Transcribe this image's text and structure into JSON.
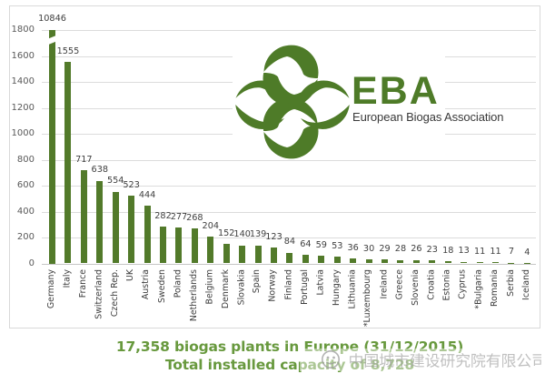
{
  "chart_data": {
    "type": "bar",
    "categories": [
      "Germany",
      "Italy",
      "France",
      "Switzerland",
      "Czech Rep.",
      "UK",
      "Austria",
      "Sweden",
      "Poland",
      "Netherlands",
      "Belgium",
      "Denmark",
      "Slovakia",
      "Spain",
      "Norway",
      "Finland",
      "Portugal",
      "Latvia",
      "Hungary",
      "Lithuania",
      "*Luxembourg",
      "Ireland",
      "Greece",
      "Slovenia",
      "Croatia",
      "Estonia",
      "Cyprus",
      "*Bulgaria",
      "Romania",
      "Serbia",
      "Iceland"
    ],
    "values": [
      10846,
      1555,
      717,
      638,
      554,
      523,
      444,
      282,
      277,
      268,
      204,
      152,
      140,
      139,
      123,
      84,
      64,
      59,
      53,
      36,
      30,
      29,
      28,
      26,
      23,
      18,
      13,
      11,
      11,
      7,
      4
    ],
    "ytick_labels": [
      "0",
      "200",
      "400",
      "600",
      "800",
      "1000",
      "1200",
      "1400",
      "1600",
      "1800"
    ],
    "ylim": [
      0,
      1800
    ],
    "ytick_step": 200,
    "grid": true,
    "legend": false,
    "broken_bar_category": "Germany",
    "bar_color": "#527a2a",
    "frame_color": "#d9d9d9",
    "grid_color": "#dcdcdc",
    "axis_line_color": "#c6c6c6",
    "ytick_color": "#595959",
    "value_label_color": "#404040",
    "category_label_color": "#3d3d3d",
    "title": "17,358 biogas plants in Europe (31/12/2015)",
    "subtitle": "Total installed capacity of 8,728",
    "xlabel": "",
    "ylabel": ""
  },
  "logo": {
    "abbr": "EBA",
    "name": "European Biogas Association",
    "green": "#4e7b28",
    "name_color": "#3a3a3a"
  },
  "caption": {
    "color": "#68993e"
  },
  "watermark": {
    "text": "中国城市建设研究院有限公司",
    "color": "#9a9a9a"
  }
}
